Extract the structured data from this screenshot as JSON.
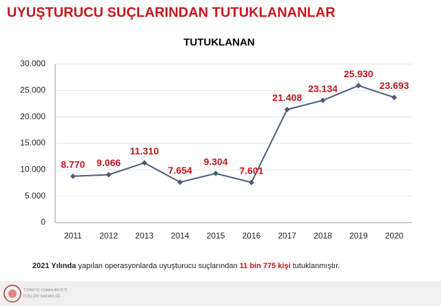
{
  "header": {
    "title": "UYUŞTURUCU SUÇLARINDAN TUTUKLANANLAR"
  },
  "chart_data": {
    "type": "line",
    "title": "TUTUKLANAN",
    "categories": [
      "2011",
      "2012",
      "2013",
      "2014",
      "2015",
      "2016",
      "2017",
      "2018",
      "2019",
      "2020"
    ],
    "values": [
      8770,
      9066,
      11310,
      7654,
      9304,
      7601,
      21408,
      23134,
      25930,
      23693
    ],
    "value_labels": [
      "8.770",
      "9.066",
      "11.310",
      "7.654",
      "9.304",
      "7.601",
      "21.408",
      "23.134",
      "25.930",
      "23.693"
    ],
    "color": "#4a5b78",
    "label_color": "#c0161d",
    "ylim": [
      0,
      30000
    ],
    "yticks": [
      0,
      {
        "value": 5000,
        "label": "5.000"
      },
      {
        "value": 10000,
        "label": "10.000"
      },
      {
        "value": 15000,
        "label": "15.000"
      },
      {
        "value": 20000,
        "label": "20.000"
      },
      {
        "value": 25000,
        "label": "25.000"
      },
      {
        "value": 30000,
        "label": "30.000"
      }
    ],
    "grid": true
  },
  "note": {
    "parts": [
      "2021 Yılında",
      " yapılan operasyonlarda uyuşturucu suçlarından ",
      "11 bin 775 kişi",
      " tutuklanmıştır."
    ]
  },
  "footer": {
    "line1": "TÜRKİYE CUMHURİYETİ",
    "line2": "İÇİŞLERİ BAKANLIĞI"
  }
}
